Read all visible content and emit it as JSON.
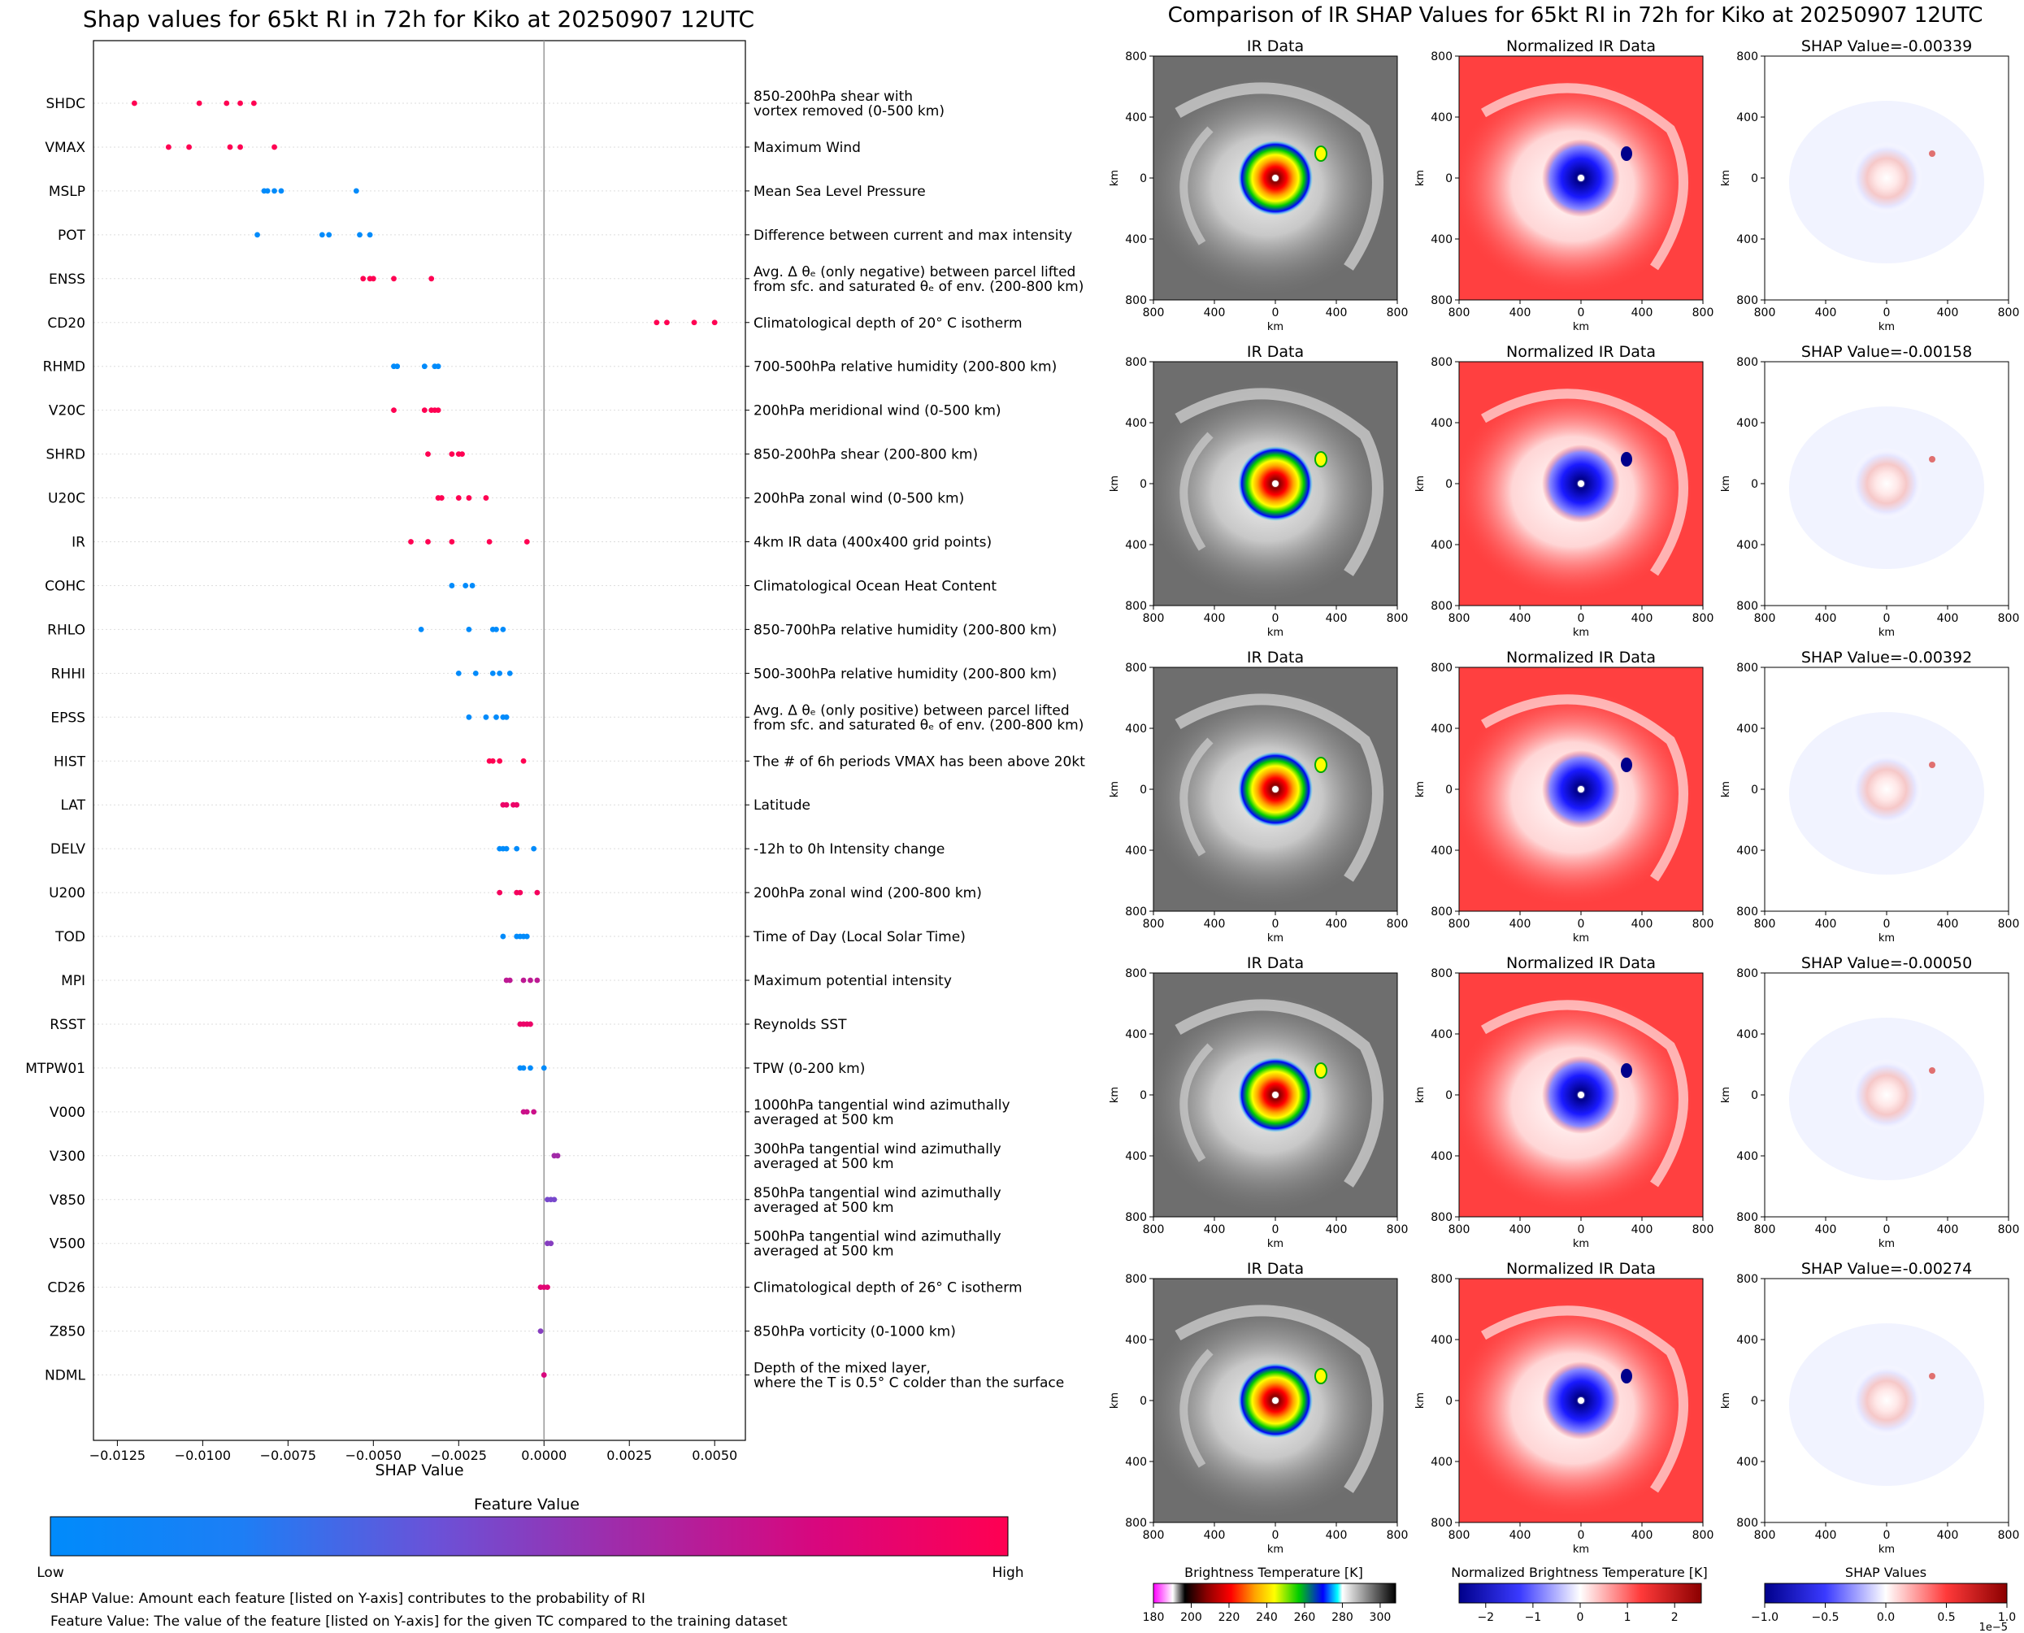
{
  "left_panel": {
    "title": "Shap values for 65kt RI in 72h for Kiko at 20250907 12UTC",
    "xlabel": "SHAP Value",
    "x_ticks": [
      "−0.0125",
      "−0.0100",
      "−0.0075",
      "−0.0050",
      "−0.0025",
      "0.0000",
      "0.0025",
      "0.0050"
    ],
    "colorbar_title": "Feature Value",
    "colorbar_low": "Low",
    "colorbar_high": "High",
    "note1": "SHAP Value: Amount each feature [listed on Y-axis] contributes to the probability of RI",
    "note2": "Feature Value: The value of the feature [listed on Y-axis] for the given TC compared to the training dataset"
  },
  "right_panel": {
    "title": "Comparison of IR SHAP Values for 65kt RI in 72h for Kiko at 20250907 12UTC",
    "col_titles": [
      "IR Data",
      "Normalized IR Data"
    ],
    "shap_titles": [
      "SHAP Value=-0.00339",
      "SHAP Value=-0.00158",
      "SHAP Value=-0.00392",
      "SHAP Value=-0.00050",
      "SHAP Value=-0.00274"
    ],
    "axis_label": "km",
    "tick_labels": [
      "800",
      "400",
      "0",
      "400",
      "800"
    ],
    "cbar_ir": {
      "title": "Brightness Temperature [K]",
      "ticks": [
        "180",
        "200",
        "220",
        "240",
        "260",
        "280",
        "300"
      ]
    },
    "cbar_norm": {
      "title": "Normalized Brightness Temperature [K]",
      "ticks": [
        "−2",
        "−1",
        "0",
        "1",
        "2"
      ]
    },
    "cbar_shap": {
      "title": "SHAP Values",
      "ticks": [
        "−1.0",
        "−0.5",
        "0.0",
        "0.5",
        "1.0"
      ],
      "exponent": "1e−5"
    }
  },
  "chart_data": {
    "type": "scatter",
    "xlim": [
      -0.0132,
      0.0059
    ],
    "features": [
      {
        "name": "SHDC",
        "desc": [
          "850-200hPa shear with",
          "vortex removed (0-500 km)"
        ],
        "fv": 1.0,
        "x": [
          -0.012,
          -0.0101,
          -0.0093,
          -0.0089,
          -0.0085
        ]
      },
      {
        "name": "VMAX",
        "desc": [
          "Maximum Wind"
        ],
        "fv": 1.0,
        "x": [
          -0.011,
          -0.0104,
          -0.0092,
          -0.0089,
          -0.0079
        ]
      },
      {
        "name": "MSLP",
        "desc": [
          "Mean Sea Level Pressure"
        ],
        "fv": 0.0,
        "x": [
          -0.0082,
          -0.0081,
          -0.0079,
          -0.0077,
          -0.0055
        ]
      },
      {
        "name": "POT",
        "desc": [
          "Difference between current and max intensity"
        ],
        "fv": 0.0,
        "x": [
          -0.0084,
          -0.0065,
          -0.0063,
          -0.0054,
          -0.0051
        ]
      },
      {
        "name": "ENSS",
        "desc": [
          "Avg. Δ θₑ (only negative) between parcel lifted",
          "from sfc. and saturated θₑ of env. (200-800 km)"
        ],
        "fv": 1.0,
        "x": [
          -0.0053,
          -0.0051,
          -0.005,
          -0.0044,
          -0.0033
        ]
      },
      {
        "name": "CD20",
        "desc": [
          "Climatological depth of 20° C isotherm"
        ],
        "fv": 1.0,
        "x": [
          0.0033,
          0.0036,
          0.0044,
          0.005
        ]
      },
      {
        "name": "RHMD",
        "desc": [
          "700-500hPa relative humidity (200-800 km)"
        ],
        "fv": 0.0,
        "x": [
          -0.0044,
          -0.0043,
          -0.0035,
          -0.0032,
          -0.0031
        ]
      },
      {
        "name": "V20C",
        "desc": [
          "200hPa meridional wind (0-500 km)"
        ],
        "fv": 1.0,
        "x": [
          -0.0044,
          -0.0035,
          -0.0033,
          -0.0032,
          -0.0031
        ]
      },
      {
        "name": "SHRD",
        "desc": [
          "850-200hPa shear (200-800 km)"
        ],
        "fv": 1.0,
        "x": [
          -0.0034,
          -0.0027,
          -0.0025,
          -0.0024
        ]
      },
      {
        "name": "U20C",
        "desc": [
          "200hPa zonal wind (0-500 km)"
        ],
        "fv": 1.0,
        "x": [
          -0.0031,
          -0.003,
          -0.0025,
          -0.0022,
          -0.0017
        ]
      },
      {
        "name": "IR",
        "desc": [
          "4km IR data (400x400 grid points)"
        ],
        "fv": 1.0,
        "x": [
          -0.0039,
          -0.0034,
          -0.0027,
          -0.0016,
          -0.0005
        ]
      },
      {
        "name": "COHC",
        "desc": [
          "Climatological Ocean Heat Content"
        ],
        "fv": 0.0,
        "x": [
          -0.0027,
          -0.0023,
          -0.0021
        ]
      },
      {
        "name": "RHLO",
        "desc": [
          "850-700hPa relative humidity (200-800 km)"
        ],
        "fv": 0.0,
        "x": [
          -0.0036,
          -0.0022,
          -0.0015,
          -0.0014,
          -0.0012
        ]
      },
      {
        "name": "RHHI",
        "desc": [
          "500-300hPa relative humidity (200-800 km)"
        ],
        "fv": 0.0,
        "x": [
          -0.0025,
          -0.002,
          -0.0015,
          -0.0013,
          -0.001
        ]
      },
      {
        "name": "EPSS",
        "desc": [
          "Avg. Δ θₑ (only positive) between parcel lifted",
          "from sfc. and saturated θₑ of env. (200-800 km)"
        ],
        "fv": 0.0,
        "x": [
          -0.0022,
          -0.0017,
          -0.0014,
          -0.0012,
          -0.0011
        ]
      },
      {
        "name": "HIST",
        "desc": [
          "The # of 6h periods VMAX has been above 20kt"
        ],
        "fv": 1.0,
        "x": [
          -0.0016,
          -0.0015,
          -0.0013,
          -0.0006
        ]
      },
      {
        "name": "LAT",
        "desc": [
          "Latitude"
        ],
        "fv": 0.9,
        "x": [
          -0.0012,
          -0.0011,
          -0.0009,
          -0.0008
        ]
      },
      {
        "name": "DELV",
        "desc": [
          "-12h to 0h Intensity change"
        ],
        "fv": 0.0,
        "x": [
          -0.0013,
          -0.0012,
          -0.0011,
          -0.0008,
          -0.0003
        ]
      },
      {
        "name": "U200",
        "desc": [
          "200hPa zonal wind (200-800 km)"
        ],
        "fv": 0.95,
        "x": [
          -0.0013,
          -0.0008,
          -0.0007,
          -0.0002
        ]
      },
      {
        "name": "TOD",
        "desc": [
          "Time of Day (Local Solar Time)"
        ],
        "fv": 0.0,
        "x": [
          -0.0012,
          -0.0008,
          -0.0007,
          -0.0006,
          -0.0005
        ]
      },
      {
        "name": "MPI",
        "desc": [
          "Maximum potential intensity"
        ],
        "fv": 0.7,
        "x": [
          -0.0011,
          -0.001,
          -0.0006,
          -0.0004,
          -0.0002
        ]
      },
      {
        "name": "RSST",
        "desc": [
          "Reynolds SST"
        ],
        "fv": 0.9,
        "x": [
          -0.0007,
          -0.0006,
          -0.0005,
          -0.0004
        ]
      },
      {
        "name": "MTPW01",
        "desc": [
          "TPW (0-200 km)"
        ],
        "fv": 0.0,
        "x": [
          -0.0007,
          -0.0006,
          -0.0004,
          0.0
        ]
      },
      {
        "name": "V000",
        "desc": [
          "1000hPa tangential wind azimuthally",
          "averaged at 500 km"
        ],
        "fv": 0.75,
        "x": [
          -0.0006,
          -0.0005,
          -0.0003
        ]
      },
      {
        "name": "V300",
        "desc": [
          "300hPa tangential wind azimuthally",
          "averaged at 500 km"
        ],
        "fv": 0.6,
        "x": [
          0.0003,
          0.0004
        ]
      },
      {
        "name": "V850",
        "desc": [
          "850hPa tangential wind azimuthally",
          "averaged at 500 km"
        ],
        "fv": 0.45,
        "x": [
          0.0001,
          0.0002,
          0.0003
        ]
      },
      {
        "name": "V500",
        "desc": [
          "500hPa tangential wind azimuthally",
          "averaged at 500 km"
        ],
        "fv": 0.5,
        "x": [
          0.0001,
          0.0002
        ]
      },
      {
        "name": "CD26",
        "desc": [
          "Climatological depth of 26° C isotherm"
        ],
        "fv": 0.85,
        "x": [
          -0.0001,
          0.0,
          0.0001
        ]
      },
      {
        "name": "Z850",
        "desc": [
          "850hPa vorticity (0-1000 km)"
        ],
        "fv": 0.5,
        "x": [
          -0.0001
        ]
      },
      {
        "name": "NDML",
        "desc": [
          "Depth of the mixed layer,",
          "where the T is 0.5° C colder than the surface"
        ],
        "fv": 0.8,
        "x": [
          0.0
        ]
      }
    ]
  },
  "colors": {
    "low": "#008bfb",
    "high": "#ff0052",
    "axis": "#000000",
    "zero_line": "#999999"
  }
}
